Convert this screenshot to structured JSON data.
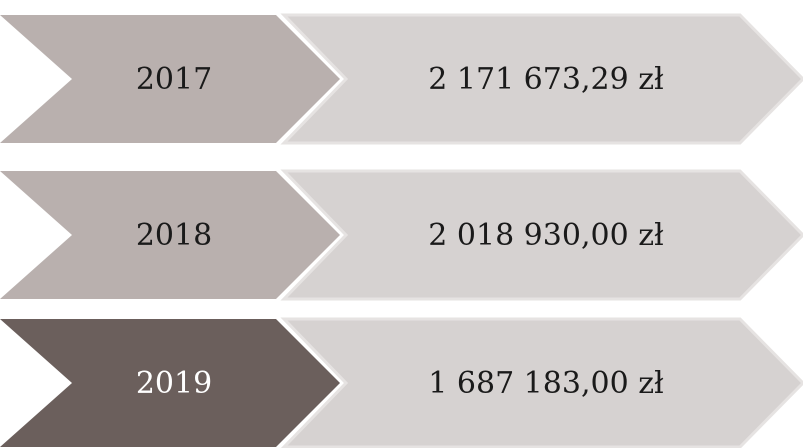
{
  "rows": [
    {
      "year": "2017",
      "amount": "2 171 673,29 zł"
    },
    {
      "year": "2018",
      "amount": "2 018 930,00 zł"
    },
    {
      "year": "2019",
      "amount": "1 687 183,00 zł"
    }
  ]
}
